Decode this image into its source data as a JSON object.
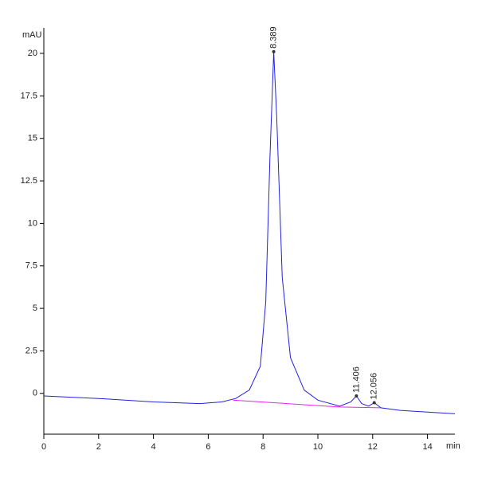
{
  "chart_data": {
    "type": "line",
    "ylabel": "mAU",
    "xlabel": "min",
    "x": [
      0,
      2,
      4,
      5.7,
      6.5,
      7,
      7.5,
      7.9,
      8.1,
      8.25,
      8.389,
      8.5,
      8.7,
      9.0,
      9.5,
      10,
      10.8,
      11.2,
      11.406,
      11.6,
      11.85,
      12.056,
      12.3,
      13,
      14,
      15
    ],
    "values": [
      -0.15,
      -0.3,
      -0.5,
      -0.6,
      -0.5,
      -0.3,
      0.2,
      1.6,
      5.4,
      13.8,
      20.1,
      16.2,
      6.8,
      2.1,
      0.2,
      -0.4,
      -0.75,
      -0.5,
      -0.15,
      -0.6,
      -0.75,
      -0.55,
      -0.85,
      -1.0,
      -1.1,
      -1.2
    ],
    "color": "#2222dd",
    "baseline": {
      "x": [
        6.9,
        10.8,
        12.3
      ],
      "values": [
        -0.4,
        -0.8,
        -0.85
      ],
      "color": "#ee22ee"
    },
    "annotations": [
      {
        "text": "8.389",
        "x": 8.389,
        "y": 20.1
      },
      {
        "text": "11.406",
        "x": 11.406,
        "y": -0.15
      },
      {
        "text": "12.056",
        "x": 12.056,
        "y": -0.55
      }
    ],
    "xlim": [
      0,
      15
    ],
    "xticks": [
      0,
      2,
      4,
      6,
      8,
      10,
      12,
      14
    ],
    "ylim": [
      -2.4,
      21.5
    ],
    "yticks": [
      0,
      2.5,
      5,
      7.5,
      10,
      12.5,
      15,
      17.5,
      20
    ],
    "grid": false
  }
}
